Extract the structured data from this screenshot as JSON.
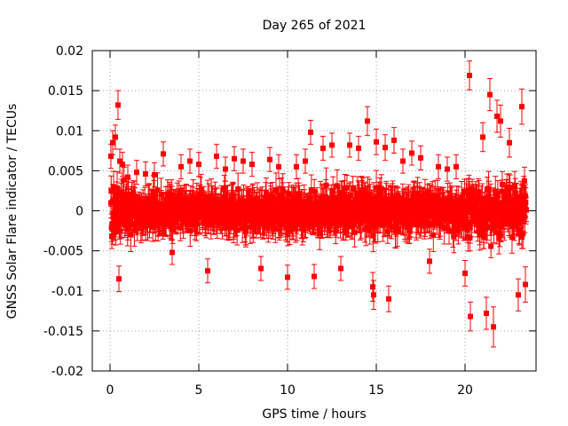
{
  "chart_data": {
    "type": "scatter",
    "title": "Day 265 of 2021",
    "xlabel": "GPS time / hours",
    "ylabel": "GNSS Solar Flare indicator / TECUs",
    "xlim": [
      -1,
      24
    ],
    "ylim": [
      -0.02,
      0.02
    ],
    "x_ticks": [
      0,
      5,
      10,
      15,
      20
    ],
    "x_tick_labels": [
      "0",
      "5",
      "10",
      "15",
      "20"
    ],
    "y_ticks": [
      -0.02,
      -0.015,
      -0.01,
      -0.005,
      0,
      0.005,
      0.01,
      0.015,
      0.02
    ],
    "y_tick_labels": [
      "-0.02",
      "-0.015",
      "-0.01",
      "-0.005",
      "0",
      "0.005",
      "0.01",
      "0.015",
      "0.02"
    ],
    "grid": true,
    "marker_color": "#ff0000",
    "series": [
      {
        "x": [
          0.05,
          0.15,
          0.3,
          0.45,
          0.5,
          0.55,
          0.7,
          1.0,
          1.5,
          2.0,
          2.5,
          3.0,
          3.5,
          4.0,
          4.5,
          5.0,
          5.5,
          6.0,
          6.5,
          7.0,
          7.5,
          8.0,
          8.5,
          9.0,
          9.5,
          10.0,
          10.5,
          11.0,
          11.3,
          11.5,
          12.0,
          12.5,
          13.0,
          13.5,
          14.0,
          14.5,
          14.8,
          14.85,
          15.0,
          15.5,
          15.7,
          16.0,
          16.5,
          17.0,
          17.5,
          18.0,
          18.5,
          19.0,
          19.5,
          20.0,
          20.25,
          20.3,
          21.0,
          21.2,
          21.4,
          21.6,
          21.8,
          22.0,
          22.5,
          23.0,
          23.2,
          23.4
        ],
        "y": [
          0.0068,
          0.0085,
          0.0092,
          0.0132,
          -0.0085,
          0.0062,
          0.0058,
          0.0042,
          0.0048,
          0.0046,
          0.0045,
          0.0071,
          -0.0052,
          0.0055,
          0.0062,
          0.0058,
          -0.0075,
          0.0068,
          0.0052,
          0.0065,
          0.0062,
          0.0058,
          -0.0072,
          0.0064,
          0.0055,
          -0.0083,
          0.0055,
          0.0062,
          0.0098,
          -0.0082,
          0.0078,
          0.0082,
          -0.0072,
          0.0082,
          0.0078,
          0.0112,
          -0.0095,
          -0.0105,
          0.0086,
          0.0079,
          -0.011,
          0.0088,
          0.0062,
          0.0072,
          0.0066,
          -0.0063,
          0.0055,
          0.0052,
          0.0055,
          -0.0078,
          0.0169,
          -0.0132,
          0.0092,
          -0.0128,
          0.0145,
          -0.0145,
          0.0118,
          0.0112,
          0.0085,
          -0.0105,
          0.013,
          -0.0092
        ],
        "yerr": [
          0.0015,
          0.0015,
          0.0015,
          0.0018,
          0.0016,
          0.0015,
          0.0015,
          0.0015,
          0.0015,
          0.0015,
          0.0015,
          0.0015,
          0.0015,
          0.0015,
          0.0015,
          0.0015,
          0.0015,
          0.0015,
          0.0015,
          0.0015,
          0.0015,
          0.0015,
          0.0015,
          0.0015,
          0.0015,
          0.0015,
          0.0015,
          0.0015,
          0.0015,
          0.0015,
          0.0015,
          0.0015,
          0.0015,
          0.0015,
          0.0015,
          0.0018,
          0.0018,
          0.0018,
          0.0016,
          0.0016,
          0.0016,
          0.0016,
          0.0015,
          0.0015,
          0.0015,
          0.0015,
          0.0015,
          0.0015,
          0.0015,
          0.0016,
          0.0018,
          0.0018,
          0.0018,
          0.002,
          0.002,
          0.0025,
          0.002,
          0.002,
          0.0018,
          0.002,
          0.0022,
          0.0022
        ]
      }
    ]
  }
}
